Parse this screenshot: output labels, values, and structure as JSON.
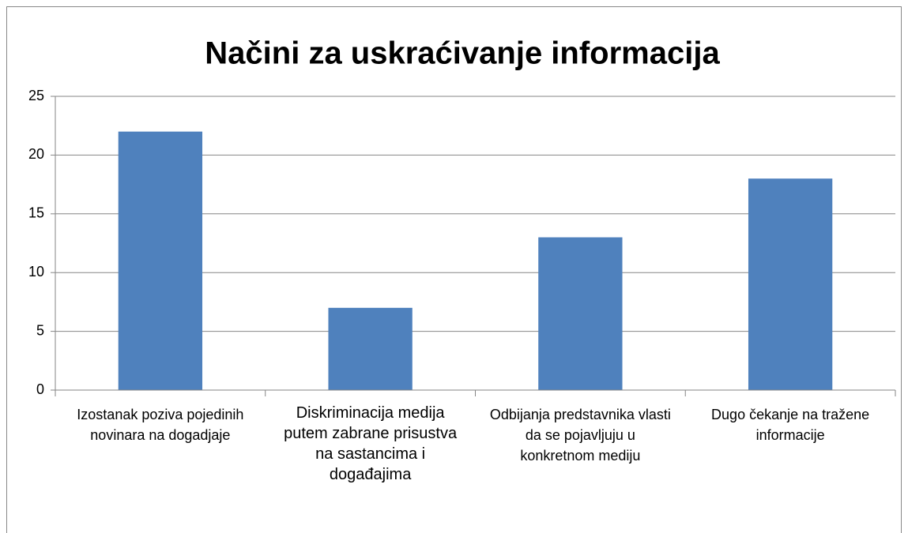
{
  "chart_data": {
    "type": "bar",
    "title": "Načini za uskraćivanje informacija",
    "categories": [
      "Izostanak poziva pojedinih novinara na dogadjaje",
      "Diskriminacija medija putem zabrane prisustva na sastancima i događajima",
      "Odbijanja predstavnika vlasti da se pojavljuju u konkretnom mediju",
      "Dugo čekanje na tražene informacije"
    ],
    "values": [
      22,
      7,
      13,
      18
    ],
    "color": "#4f81bd",
    "ylim": [
      0,
      25
    ],
    "yticks": [
      0,
      5,
      10,
      15,
      20,
      25
    ],
    "grid": true
  }
}
